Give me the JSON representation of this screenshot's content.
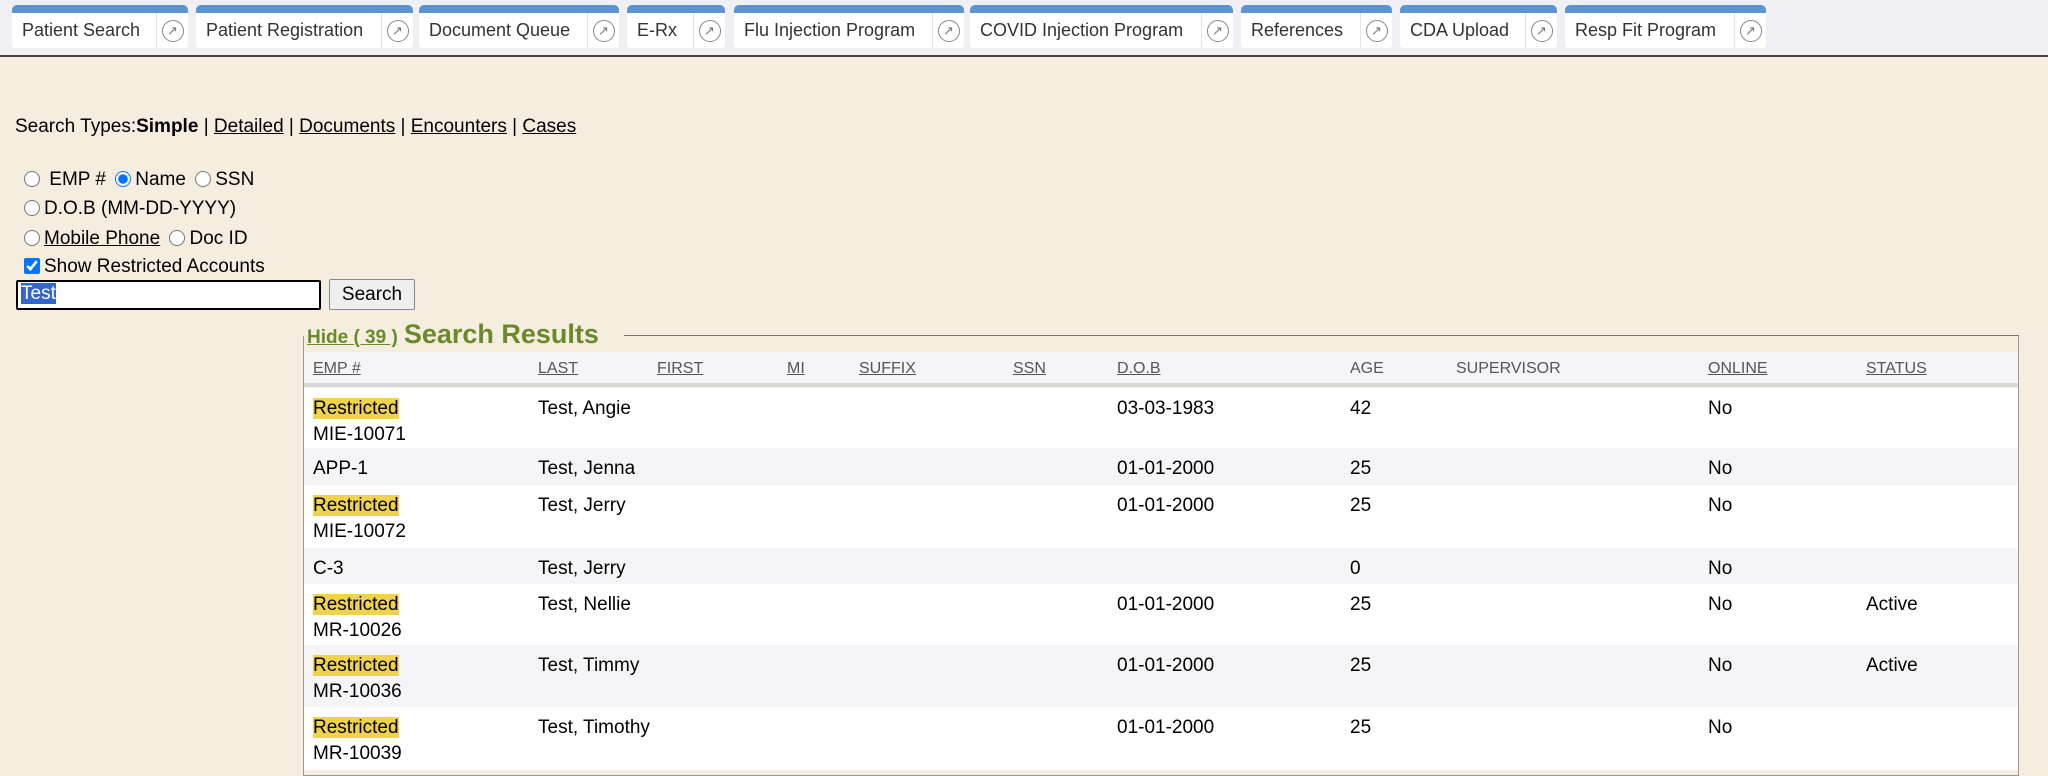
{
  "tabs": [
    {
      "label": "Patient Search"
    },
    {
      "label": "Patient Registration"
    },
    {
      "label": "Document Queue"
    },
    {
      "label": "E-Rx"
    },
    {
      "label": "Flu Injection Program"
    },
    {
      "label": "COVID Injection Program"
    },
    {
      "label": "References"
    },
    {
      "label": "CDA Upload"
    },
    {
      "label": "Resp Fit Program"
    }
  ],
  "tab_icon": "external-link-circle-icon",
  "search_types": {
    "prefix": "Search Types:",
    "current": "Simple",
    "links": [
      "Detailed",
      "Documents",
      "Encounters",
      "Cases"
    ],
    "sep": "|"
  },
  "options": {
    "emp": "EMP #",
    "name": "Name",
    "ssn": "SSN",
    "dob": "D.O.B (MM-DD-YYYY)",
    "mobile": "Mobile Phone",
    "docid": "Doc ID",
    "show_restricted": "Show Restricted Accounts",
    "selected": "Name",
    "show_restricted_checked": true
  },
  "search": {
    "value": "Test",
    "button": "Search"
  },
  "results": {
    "hide_label": "Hide ( 39 )",
    "title": "Search Results",
    "columns": [
      "EMP #",
      "LAST",
      "FIRST",
      "MI",
      "SUFFIX",
      "SSN",
      "D.O.B",
      "AGE",
      "SUPERVISOR",
      "ONLINE",
      "STATUS"
    ],
    "rows": [
      {
        "restricted": "Restricted",
        "emp": "MIE-10071",
        "last": "Test, Angie",
        "dob": "03-03-1983",
        "age": "42",
        "online": "No",
        "status": ""
      },
      {
        "restricted": "",
        "emp": "APP-1",
        "last": "Test, Jenna",
        "dob": "01-01-2000",
        "age": "25",
        "online": "No",
        "status": ""
      },
      {
        "restricted": "Restricted",
        "emp": "MIE-10072",
        "last": "Test, Jerry",
        "dob": "01-01-2000",
        "age": "25",
        "online": "No",
        "status": ""
      },
      {
        "restricted": "",
        "emp": "C-3",
        "last": "Test, Jerry",
        "dob": "",
        "age": "0",
        "online": "No",
        "status": ""
      },
      {
        "restricted": "Restricted",
        "emp": "MR-10026",
        "last": "Test, Nellie",
        "dob": "01-01-2000",
        "age": "25",
        "online": "No",
        "status": "Active"
      },
      {
        "restricted": "Restricted",
        "emp": "MR-10036",
        "last": "Test, Timmy",
        "dob": "01-01-2000",
        "age": "25",
        "online": "No",
        "status": "Active"
      },
      {
        "restricted": "Restricted",
        "emp": "MR-10039",
        "last": "Test, Timothy",
        "dob": "01-01-2000",
        "age": "25",
        "online": "No",
        "status": ""
      }
    ]
  },
  "colors": {
    "tab_accent": "#5b93d3",
    "background": "#f4ede0",
    "legend": "#6a8a2a",
    "restricted": "#f0d34a"
  }
}
